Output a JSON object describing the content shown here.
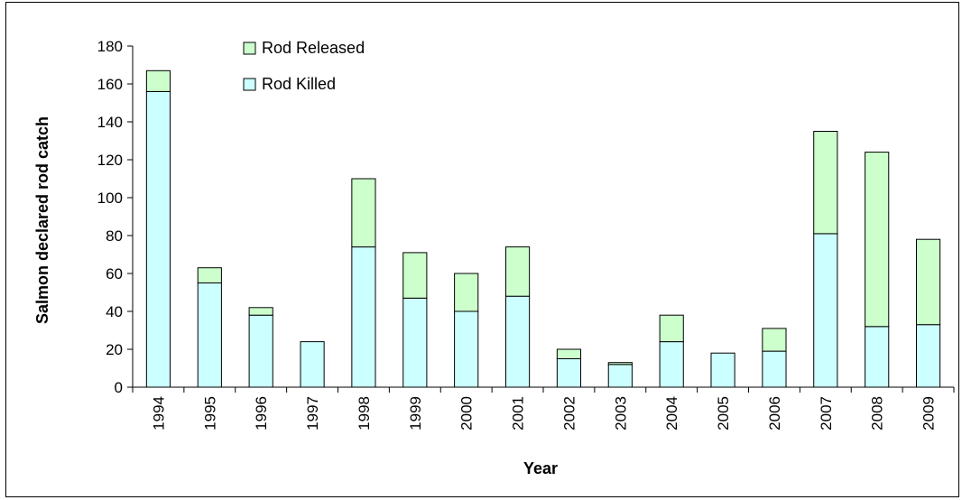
{
  "colors": {
    "rod_released": "#ccffcc",
    "rod_killed": "#ccffff",
    "outline": "#000000"
  },
  "chart_data": {
    "type": "bar",
    "stacked": true,
    "title": "",
    "xlabel": "Year",
    "ylabel": "Salmon declared rod catch",
    "ylim": [
      0,
      180
    ],
    "yticks": [
      0,
      20,
      40,
      60,
      80,
      100,
      120,
      140,
      160,
      180
    ],
    "grid": false,
    "legend_position": "top-left",
    "categories": [
      "1994",
      "1995",
      "1996",
      "1997",
      "1998",
      "1999",
      "2000",
      "2001",
      "2002",
      "2003",
      "2004",
      "2005",
      "2006",
      "2007",
      "2008",
      "2009"
    ],
    "series": [
      {
        "name": "Rod Killed",
        "values": [
          156,
          55,
          38,
          24,
          74,
          47,
          40,
          48,
          15,
          12,
          24,
          18,
          19,
          81,
          32,
          33
        ]
      },
      {
        "name": "Rod Released",
        "values": [
          11,
          8,
          4,
          0,
          36,
          24,
          20,
          26,
          5,
          1,
          14,
          0,
          12,
          54,
          92,
          45
        ]
      }
    ],
    "legend_order": [
      "Rod Released",
      "Rod Killed"
    ]
  }
}
